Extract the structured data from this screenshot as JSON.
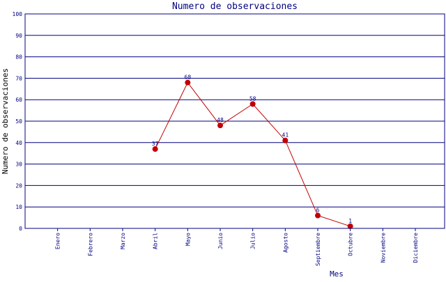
{
  "chart_data": {
    "type": "line",
    "title": "Numero de observaciones",
    "xlabel": "Mes",
    "ylabel": "Numero de observaciones",
    "categories": [
      "Enero",
      "Febrero",
      "Marzo",
      "Abril",
      "Mayo",
      "Junio",
      "Julio",
      "Agosto",
      "Septiembre",
      "Octubre",
      "Noviembre",
      "Diciembre"
    ],
    "series": [
      {
        "values": [
          null,
          null,
          null,
          37,
          68,
          48,
          58,
          41,
          6,
          1,
          null,
          null
        ]
      }
    ],
    "ylim": [
      0,
      100
    ],
    "yticks": [
      0,
      10,
      20,
      30,
      40,
      50,
      60,
      70,
      80,
      90,
      100
    ],
    "grid": "horizontal",
    "colors": {
      "line": "#c00000",
      "marker": "#c00000",
      "grid": "#000080",
      "text": "#000080"
    }
  }
}
